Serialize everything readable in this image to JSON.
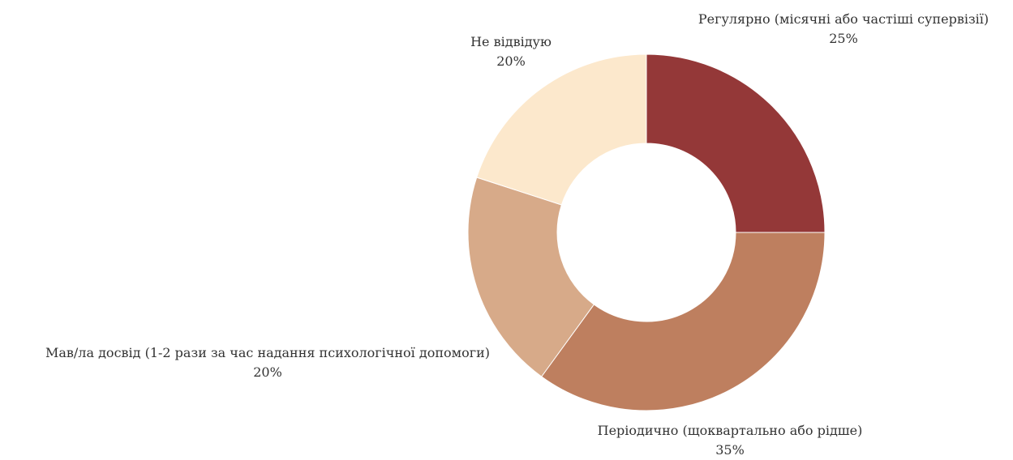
{
  "chart_data": {
    "type": "pie",
    "donut": true,
    "start_angle_deg": 0,
    "direction": "clockwise",
    "slices": [
      {
        "label": "Регулярно (місячні або частіші супервізії)",
        "value": 25,
        "value_label": "25%",
        "color": "#943838"
      },
      {
        "label": "Періодично (щоквартально або рідше)",
        "value": 35,
        "value_label": "35%",
        "color": "#be7f5f"
      },
      {
        "label": "Мав/ла досвід (1-2 рази за час надання психологічної допомоги)",
        "value": 20,
        "value_label": "20%",
        "color": "#d7aa89"
      },
      {
        "label": "Не відвідую",
        "value": 20,
        "value_label": "20%",
        "color": "#fce8cc"
      }
    ]
  }
}
